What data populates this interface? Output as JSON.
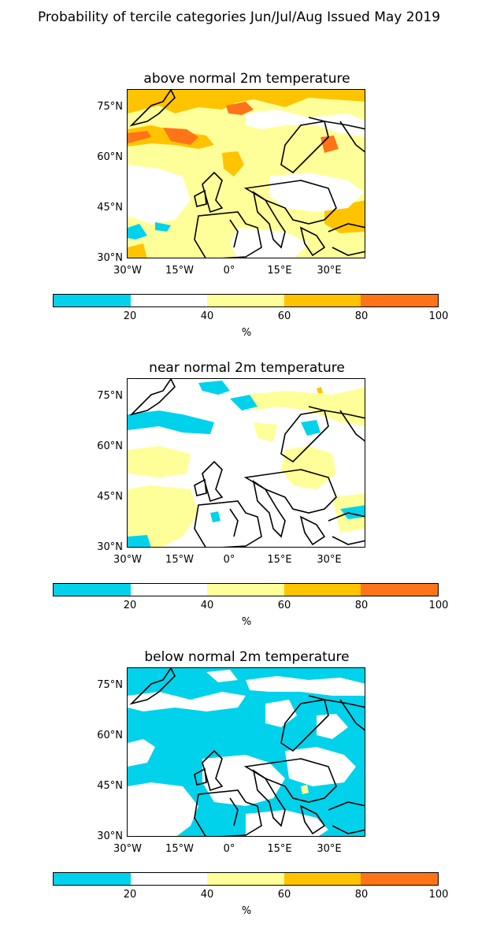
{
  "title": "Probability of tercile categories Jun/Jul/Aug Issued May 2019",
  "lat_labels": [
    "75°N",
    "60°N",
    "45°N",
    "30°N"
  ],
  "lon_labels": [
    "30°W",
    "15°W",
    "0°",
    "15°E",
    "30°E"
  ],
  "colorbar": {
    "colors": [
      "#00d2eb",
      "#ffffff",
      "#ffff99",
      "#ffc300",
      "#ff7319"
    ],
    "tick_labels": [
      "20",
      "40",
      "60",
      "80",
      "100"
    ],
    "unit": "%"
  },
  "panels": [
    {
      "title": "above normal 2m temperature",
      "dominant": "yellow"
    },
    {
      "title": "near normal 2m temperature",
      "dominant": "white"
    },
    {
      "title": "below normal 2m temperature",
      "dominant": "cyan"
    }
  ]
}
